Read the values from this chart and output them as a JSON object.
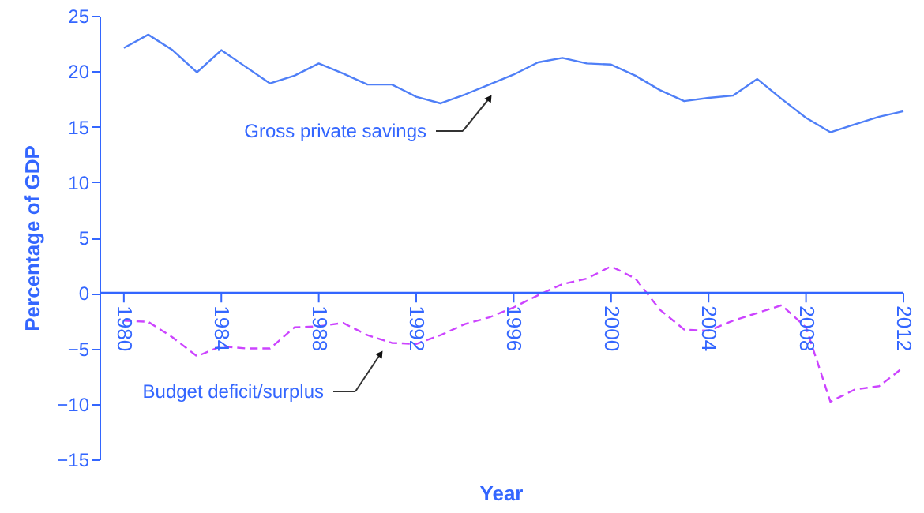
{
  "chart_data": {
    "type": "line",
    "xlabel": "Year",
    "ylabel": "Percentage of GDP",
    "x": [
      1980,
      1981,
      1982,
      1983,
      1984,
      1985,
      1986,
      1987,
      1988,
      1989,
      1990,
      1991,
      1992,
      1993,
      1994,
      1995,
      1996,
      1997,
      1998,
      1999,
      2000,
      2001,
      2002,
      2003,
      2004,
      2005,
      2006,
      2007,
      2008,
      2009,
      2010,
      2011,
      2012
    ],
    "xlim": [
      1979,
      2012
    ],
    "xticks": [
      1980,
      1984,
      1988,
      1992,
      1996,
      2000,
      2004,
      2008,
      2012
    ],
    "ylim": [
      -15,
      25
    ],
    "yticks": [
      -15,
      -10,
      -5,
      0,
      5,
      10,
      15,
      20,
      25
    ],
    "series": [
      {
        "color": "#4f7ff7",
        "line_style": "solid",
        "values": [
          22.1,
          23.3,
          21.9,
          19.9,
          21.9,
          20.4,
          18.9,
          19.6,
          20.7,
          19.8,
          18.8,
          18.8,
          17.7,
          17.1,
          17.9,
          18.8,
          19.7,
          20.8,
          21.2,
          20.7,
          20.6,
          19.6,
          18.3,
          17.3,
          17.6,
          17.8,
          19.3,
          17.5,
          15.8,
          14.5,
          15.2,
          15.9,
          16.4
        ]
      },
      {
        "color": "#cc44ff",
        "line_style": "dashed",
        "values": [
          -2.5,
          -2.6,
          -4.0,
          -5.7,
          -4.8,
          -5.0,
          -5.0,
          -3.1,
          -3.0,
          -2.7,
          -3.8,
          -4.5,
          -4.6,
          -3.8,
          -2.8,
          -2.2,
          -1.3,
          -0.2,
          0.8,
          1.3,
          2.4,
          1.3,
          -1.5,
          -3.3,
          -3.4,
          -2.5,
          -1.8,
          -1.1,
          -3.1,
          -9.8,
          -8.7,
          -8.4,
          -6.7
        ]
      }
    ],
    "annotations": [
      "Gross private savings",
      "Budget deficit/surplus"
    ],
    "grid": false,
    "marker": "none"
  }
}
